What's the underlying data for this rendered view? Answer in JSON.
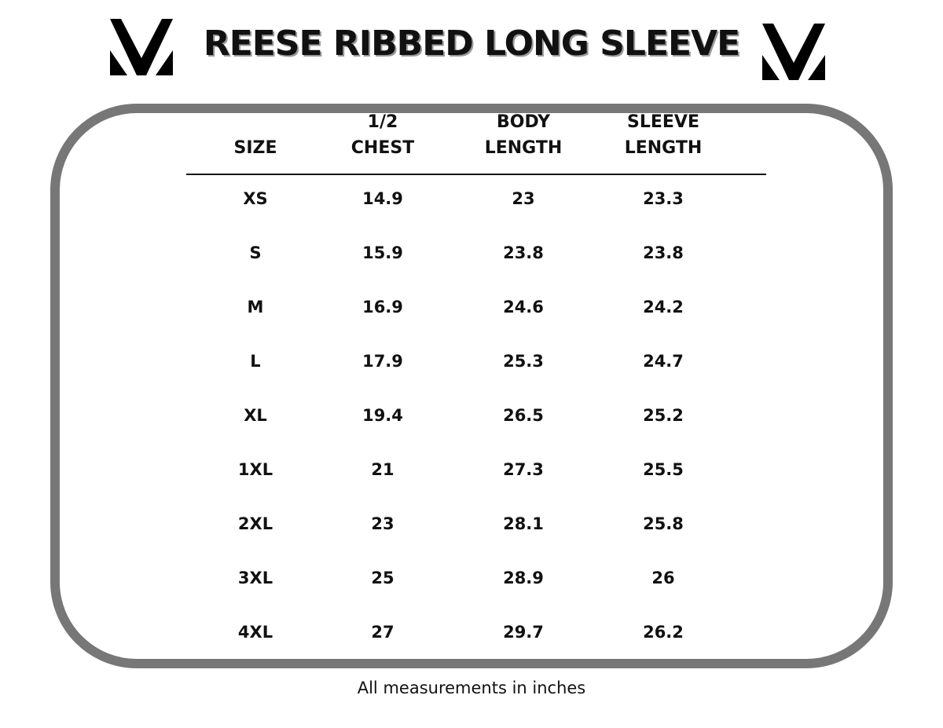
{
  "header": {
    "title": "REESE RIBBED LONG SLEEVE"
  },
  "table": {
    "columns": [
      "SIZE",
      "1/2 CHEST",
      "BODY LENGTH",
      "SLEEVE LENGTH"
    ],
    "rows": [
      [
        "XS",
        "14.9",
        "23",
        "23.3"
      ],
      [
        "S",
        "15.9",
        "23.8",
        "23.8"
      ],
      [
        "M",
        "16.9",
        "24.6",
        "24.2"
      ],
      [
        "L",
        "17.9",
        "25.3",
        "24.7"
      ],
      [
        "XL",
        "19.4",
        "26.5",
        "25.2"
      ],
      [
        "1XL",
        "21",
        "27.3",
        "25.5"
      ],
      [
        "2XL",
        "23",
        "28.1",
        "25.8"
      ],
      [
        "3XL",
        "25",
        "28.9",
        "26"
      ],
      [
        "4XL",
        "27",
        "29.7",
        "26.2"
      ]
    ]
  },
  "footer": {
    "note": "All measurements in inches"
  }
}
